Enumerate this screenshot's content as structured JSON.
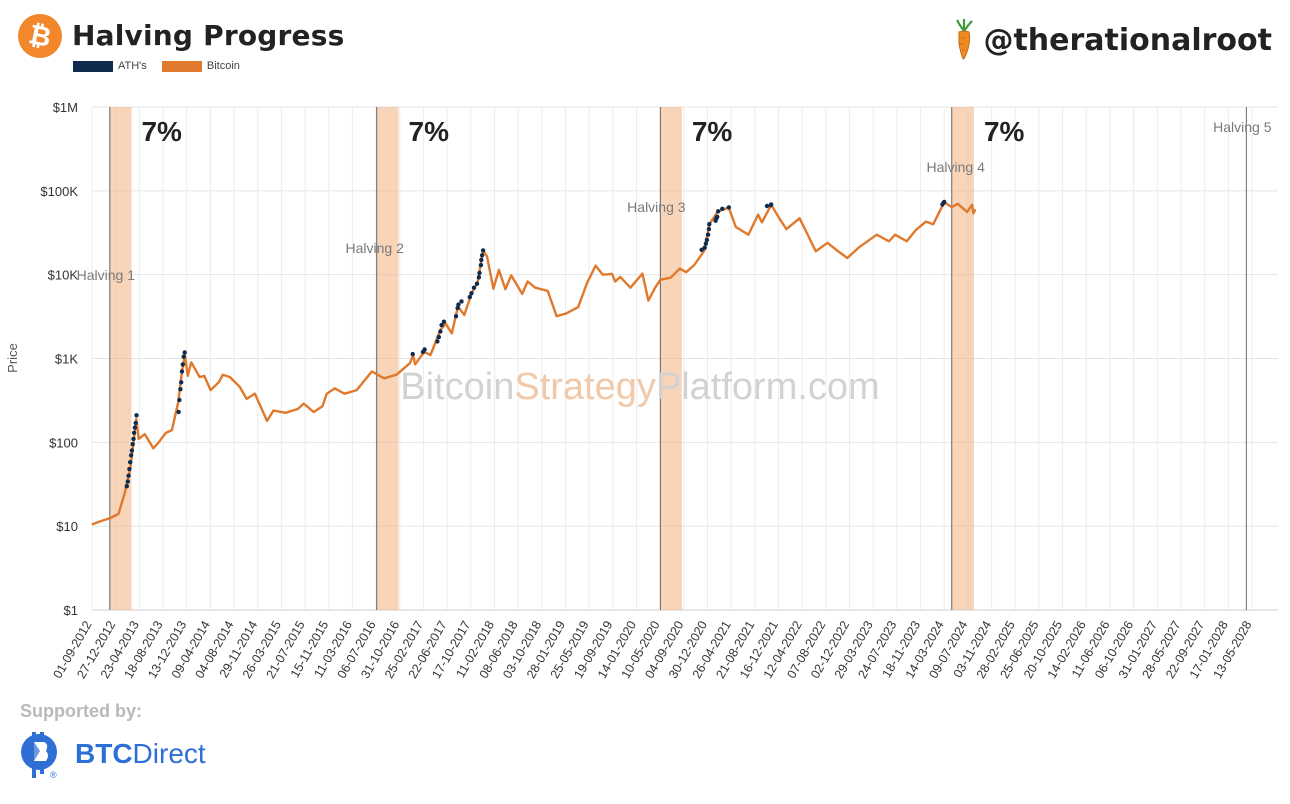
{
  "header": {
    "title": "Halving Progress",
    "handle": "@therationalroot"
  },
  "legend": [
    {
      "label": "ATH's",
      "color": "#0f2b4e"
    },
    {
      "label": "Bitcoin",
      "color": "#e0792b"
    }
  ],
  "watermark": {
    "part1": "Bitcoin",
    "part2": "Strategy",
    "part3": "Platform.com"
  },
  "footer": {
    "supported_by": "Supported by:",
    "sponsor_bold": "BTC",
    "sponsor_rest": "Direct",
    "reg_mark": "®"
  },
  "colors": {
    "bitcoin": "#e0792b",
    "ath": "#0f2b4e",
    "band": "#f0b586",
    "grid": "#e6e6e6"
  },
  "chart_data": {
    "type": "line",
    "ylabel": "Price",
    "yscale": "log",
    "ylim": [
      1,
      1000000
    ],
    "ytick_labels": [
      "$1",
      "$10",
      "$100",
      "$1K",
      "$10K",
      "$100K",
      "$1M"
    ],
    "xlim": [
      "2012-09-01",
      "2028-05-13"
    ],
    "xtick_labels": [
      "01-09-2012",
      "27-12-2012",
      "23-04-2013",
      "18-08-2013",
      "13-12-2013",
      "09-04-2014",
      "04-08-2014",
      "29-11-2014",
      "26-03-2015",
      "21-07-2015",
      "15-11-2015",
      "11-03-2016",
      "06-07-2016",
      "31-10-2016",
      "25-02-2017",
      "22-06-2017",
      "17-10-2017",
      "11-02-2018",
      "08-06-2018",
      "03-10-2018",
      "28-01-2019",
      "25-05-2019",
      "19-09-2019",
      "14-01-2020",
      "10-05-2020",
      "04-09-2020",
      "30-12-2020",
      "26-04-2021",
      "21-08-2021",
      "16-12-2021",
      "12-04-2022",
      "07-08-2022",
      "02-12-2022",
      "29-03-2023",
      "24-07-2023",
      "18-11-2023",
      "14-03-2024",
      "09-07-2024",
      "03-11-2024",
      "28-02-2025",
      "25-06-2025",
      "20-10-2025",
      "14-02-2026",
      "11-06-2026",
      "06-10-2026",
      "31-01-2027",
      "28-05-2027",
      "22-09-2027",
      "17-01-2028",
      "13-05-2028"
    ],
    "halvings": [
      {
        "label": "Halving 1",
        "date": "2012-11-28",
        "band_end": "2013-03-15",
        "progress_label": "7%"
      },
      {
        "label": "Halving 2",
        "date": "2016-07-09",
        "band_end": "2016-10-25",
        "progress_label": "7%"
      },
      {
        "label": "Halving 3",
        "date": "2020-05-11",
        "band_end": "2020-08-25",
        "progress_label": "7%"
      },
      {
        "label": "Halving 4",
        "date": "2024-04-20",
        "band_end": "2024-08-08",
        "progress_label": "7%"
      },
      {
        "label": "Halving 5",
        "date": "2028-04-15"
      }
    ],
    "series": [
      {
        "name": "Bitcoin",
        "color": "#e0792b",
        "points": [
          [
            "2012-09-01",
            10.5
          ],
          [
            "2012-10-15",
            11.5
          ],
          [
            "2012-12-01",
            12.5
          ],
          [
            "2013-01-10",
            14
          ],
          [
            "2013-02-10",
            25
          ],
          [
            "2013-03-10",
            50
          ],
          [
            "2013-04-08",
            190
          ],
          [
            "2013-04-20",
            110
          ],
          [
            "2013-05-20",
            125
          ],
          [
            "2013-07-01",
            85
          ],
          [
            "2013-07-20",
            95
          ],
          [
            "2013-09-01",
            130
          ],
          [
            "2013-10-01",
            140
          ],
          [
            "2013-11-01",
            300
          ],
          [
            "2013-11-20",
            700
          ],
          [
            "2013-12-04",
            1100
          ],
          [
            "2013-12-18",
            620
          ],
          [
            "2014-01-05",
            900
          ],
          [
            "2014-02-15",
            600
          ],
          [
            "2014-03-10",
            620
          ],
          [
            "2014-04-10",
            420
          ],
          [
            "2014-05-20",
            520
          ],
          [
            "2014-06-10",
            640
          ],
          [
            "2014-07-15",
            600
          ],
          [
            "2014-09-01",
            460
          ],
          [
            "2014-10-05",
            330
          ],
          [
            "2014-11-15",
            380
          ],
          [
            "2015-01-14",
            180
          ],
          [
            "2015-02-15",
            240
          ],
          [
            "2015-04-15",
            225
          ],
          [
            "2015-06-15",
            250
          ],
          [
            "2015-07-15",
            290
          ],
          [
            "2015-09-01",
            230
          ],
          [
            "2015-10-15",
            270
          ],
          [
            "2015-11-05",
            380
          ],
          [
            "2015-12-15",
            440
          ],
          [
            "2016-02-01",
            380
          ],
          [
            "2016-04-01",
            420
          ],
          [
            "2016-06-15",
            700
          ],
          [
            "2016-07-09",
            650
          ],
          [
            "2016-08-15",
            580
          ],
          [
            "2016-10-15",
            640
          ],
          [
            "2016-12-20",
            880
          ],
          [
            "2017-01-05",
            1100
          ],
          [
            "2017-01-15",
            850
          ],
          [
            "2017-03-01",
            1200
          ],
          [
            "2017-04-01",
            1100
          ],
          [
            "2017-05-20",
            2200
          ],
          [
            "2017-06-15",
            2600
          ],
          [
            "2017-07-15",
            2000
          ],
          [
            "2017-08-15",
            4200
          ],
          [
            "2017-09-15",
            3300
          ],
          [
            "2017-10-20",
            5900
          ],
          [
            "2017-11-20",
            8200
          ],
          [
            "2017-12-17",
            19500
          ],
          [
            "2018-01-05",
            16500
          ],
          [
            "2018-02-06",
            6800
          ],
          [
            "2018-03-05",
            11400
          ],
          [
            "2018-04-06",
            6700
          ],
          [
            "2018-05-05",
            9800
          ],
          [
            "2018-06-28",
            5900
          ],
          [
            "2018-07-25",
            8300
          ],
          [
            "2018-09-01",
            7000
          ],
          [
            "2018-11-01",
            6400
          ],
          [
            "2018-12-15",
            3200
          ],
          [
            "2019-02-01",
            3450
          ],
          [
            "2019-04-01",
            4100
          ],
          [
            "2019-05-15",
            8000
          ],
          [
            "2019-06-26",
            12800
          ],
          [
            "2019-08-01",
            10000
          ],
          [
            "2019-09-15",
            10200
          ],
          [
            "2019-10-01",
            8300
          ],
          [
            "2019-10-26",
            9400
          ],
          [
            "2019-12-15",
            7000
          ],
          [
            "2020-02-12",
            10300
          ],
          [
            "2020-03-13",
            4900
          ],
          [
            "2020-04-15",
            7000
          ],
          [
            "2020-05-11",
            8700
          ],
          [
            "2020-07-01",
            9200
          ],
          [
            "2020-08-15",
            11800
          ],
          [
            "2020-09-15",
            10700
          ],
          [
            "2020-10-25",
            13000
          ],
          [
            "2020-12-15",
            19500
          ],
          [
            "2021-01-08",
            40000
          ],
          [
            "2021-02-20",
            57000
          ],
          [
            "2021-04-14",
            63000
          ],
          [
            "2021-05-19",
            37000
          ],
          [
            "2021-07-20",
            30000
          ],
          [
            "2021-09-06",
            52000
          ],
          [
            "2021-09-25",
            42000
          ],
          [
            "2021-11-10",
            68000
          ],
          [
            "2021-12-20",
            47000
          ],
          [
            "2022-01-24",
            35000
          ],
          [
            "2022-03-30",
            47000
          ],
          [
            "2022-05-12",
            29000
          ],
          [
            "2022-06-18",
            19000
          ],
          [
            "2022-08-15",
            24000
          ],
          [
            "2022-10-01",
            19500
          ],
          [
            "2022-11-21",
            15800
          ],
          [
            "2023-01-15",
            21000
          ],
          [
            "2023-04-15",
            30000
          ],
          [
            "2023-06-15",
            25000
          ],
          [
            "2023-07-15",
            30000
          ],
          [
            "2023-09-11",
            25000
          ],
          [
            "2023-10-25",
            34000
          ],
          [
            "2023-12-15",
            43000
          ],
          [
            "2024-01-20",
            40000
          ],
          [
            "2024-03-14",
            73000
          ],
          [
            "2024-04-20",
            64000
          ],
          [
            "2024-05-20",
            70000
          ],
          [
            "2024-07-05",
            56000
          ],
          [
            "2024-07-29",
            68000
          ],
          [
            "2024-08-05",
            54000
          ],
          [
            "2024-08-15",
            60000
          ]
        ]
      },
      {
        "name": "ATH's",
        "color": "#0f2b4e",
        "points": [
          [
            "2013-02-20",
            30
          ],
          [
            "2013-02-25",
            34
          ],
          [
            "2013-03-01",
            40
          ],
          [
            "2013-03-05",
            48
          ],
          [
            "2013-03-09",
            58
          ],
          [
            "2013-03-13",
            70
          ],
          [
            "2013-03-17",
            80
          ],
          [
            "2013-03-21",
            95
          ],
          [
            "2013-03-25",
            110
          ],
          [
            "2013-03-28",
            130
          ],
          [
            "2013-04-01",
            150
          ],
          [
            "2013-04-05",
            170
          ],
          [
            "2013-04-09",
            210
          ],
          [
            "2013-11-03",
            230
          ],
          [
            "2013-11-07",
            320
          ],
          [
            "2013-11-12",
            430
          ],
          [
            "2013-11-16",
            520
          ],
          [
            "2013-11-20",
            700
          ],
          [
            "2013-11-24",
            850
          ],
          [
            "2013-11-28",
            1050
          ],
          [
            "2013-12-03",
            1180
          ],
          [
            "2017-01-03",
            1130
          ],
          [
            "2017-02-23",
            1200
          ],
          [
            "2017-03-03",
            1280
          ],
          [
            "2017-05-05",
            1600
          ],
          [
            "2017-05-12",
            1800
          ],
          [
            "2017-05-20",
            2100
          ],
          [
            "2017-05-26",
            2500
          ],
          [
            "2017-06-06",
            2750
          ],
          [
            "2017-08-05",
            3200
          ],
          [
            "2017-08-13",
            4000
          ],
          [
            "2017-08-17",
            4400
          ],
          [
            "2017-09-01",
            4800
          ],
          [
            "2017-10-12",
            5400
          ],
          [
            "2017-10-20",
            6000
          ],
          [
            "2017-11-02",
            7000
          ],
          [
            "2017-11-17",
            7800
          ],
          [
            "2017-11-26",
            9300
          ],
          [
            "2017-11-29",
            10500
          ],
          [
            "2017-12-06",
            13000
          ],
          [
            "2017-12-08",
            15000
          ],
          [
            "2017-12-12",
            17000
          ],
          [
            "2017-12-17",
            19500
          ],
          [
            "2020-12-01",
            19800
          ],
          [
            "2020-12-16",
            21000
          ],
          [
            "2020-12-22",
            23500
          ],
          [
            "2020-12-27",
            26000
          ],
          [
            "2021-01-02",
            30000
          ],
          [
            "2021-01-06",
            35000
          ],
          [
            "2021-01-08",
            40000
          ],
          [
            "2021-02-08",
            44000
          ],
          [
            "2021-02-12",
            47000
          ],
          [
            "2021-02-16",
            49000
          ],
          [
            "2021-02-21",
            57000
          ],
          [
            "2021-03-13",
            61000
          ],
          [
            "2021-04-14",
            63500
          ],
          [
            "2021-10-20",
            66000
          ],
          [
            "2021-11-08",
            67500
          ],
          [
            "2021-11-10",
            68700
          ],
          [
            "2024-03-05",
            68800
          ],
          [
            "2024-03-11",
            72000
          ],
          [
            "2024-03-14",
            73700
          ]
        ]
      }
    ]
  }
}
